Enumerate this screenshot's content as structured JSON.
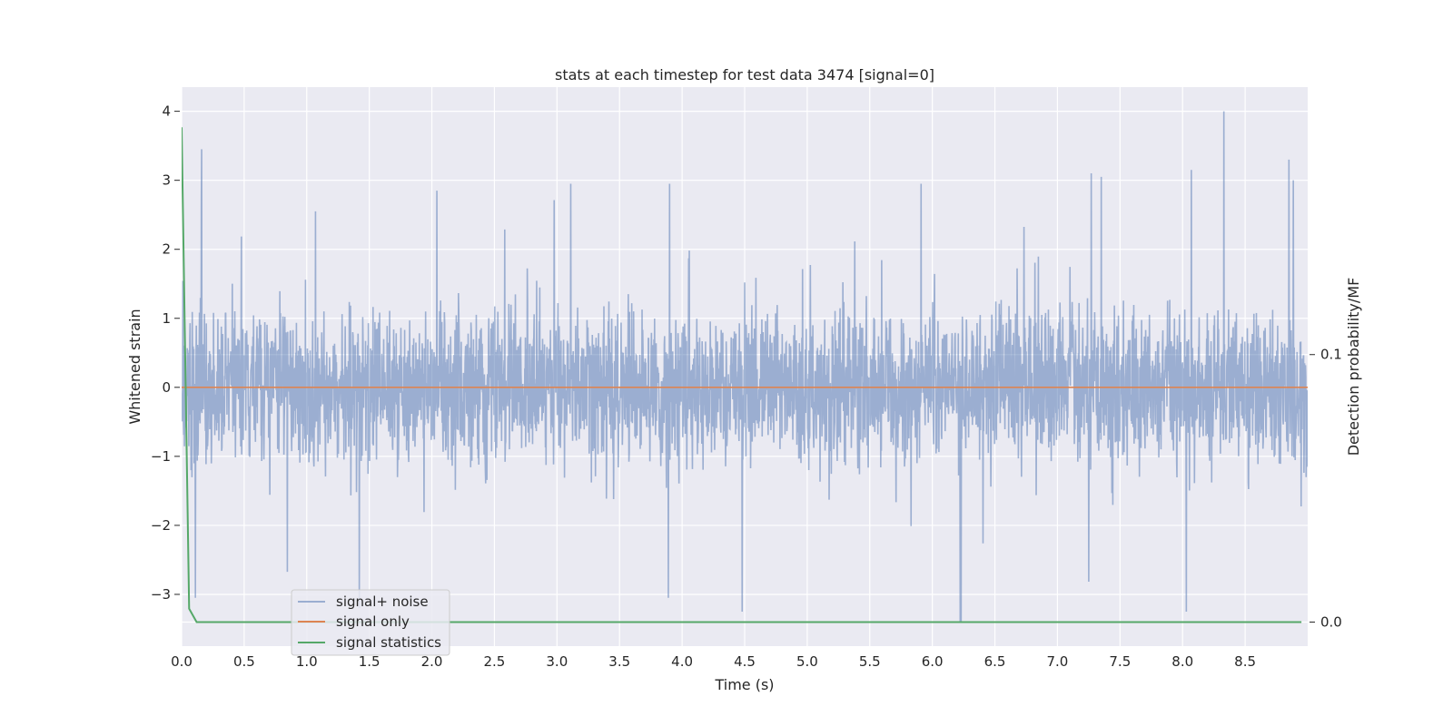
{
  "chart_data": {
    "type": "line",
    "title": "stats at each timestep for test data 3474 [signal=0]",
    "xlabel": "Time (s)",
    "ylabel": "Whitened strain",
    "y2label": "Detection probability/MF",
    "xlim": [
      0.0,
      9.0
    ],
    "ylim": [
      -3.75,
      4.35
    ],
    "y2lim": [
      -0.009,
      0.2
    ],
    "xticks": [
      "0.0",
      "0.5",
      "1.0",
      "1.5",
      "2.0",
      "2.5",
      "3.0",
      "3.5",
      "4.0",
      "4.5",
      "5.0",
      "5.5",
      "6.0",
      "6.5",
      "7.0",
      "7.5",
      "8.0",
      "8.5"
    ],
    "yticks": [
      "4",
      "3",
      "2",
      "1",
      "0",
      "−1",
      "−2",
      "−3"
    ],
    "y2ticks": [
      "0.1",
      "0.0"
    ],
    "grid": true,
    "legend_position": "lower-left",
    "series": [
      {
        "name": "signal+ noise",
        "color": "#4c72b0",
        "opacity": 0.5,
        "axis": "left",
        "envelope": {
          "min": -3.4,
          "max": 4.0,
          "sigma": 0.75
        },
        "peaks": [
          {
            "x": 0.16,
            "y": 3.45
          },
          {
            "x": 1.07,
            "y": 2.55
          },
          {
            "x": 2.04,
            "y": 2.85
          },
          {
            "x": 3.11,
            "y": 2.95
          },
          {
            "x": 3.9,
            "y": 2.95
          },
          {
            "x": 5.91,
            "y": 2.95
          },
          {
            "x": 7.27,
            "y": 3.1
          },
          {
            "x": 7.35,
            "y": 3.05
          },
          {
            "x": 8.07,
            "y": 3.15
          },
          {
            "x": 8.33,
            "y": 4.0
          },
          {
            "x": 8.85,
            "y": 3.3
          },
          {
            "x": 0.11,
            "y": -3.05
          },
          {
            "x": 1.42,
            "y": -3.2
          },
          {
            "x": 3.89,
            "y": -3.05
          },
          {
            "x": 4.48,
            "y": -3.25
          },
          {
            "x": 6.23,
            "y": -3.4
          },
          {
            "x": 8.03,
            "y": -3.25
          }
        ]
      },
      {
        "name": "signal only",
        "color": "#dd8452",
        "axis": "left",
        "x": [
          0.0,
          9.0
        ],
        "y": [
          0.0,
          0.0
        ]
      },
      {
        "name": "signal statistics",
        "color": "#55a868",
        "axis": "right",
        "x": [
          0.0,
          0.06,
          0.12,
          0.2,
          1.0,
          2.0,
          3.0,
          4.0,
          5.0,
          6.0,
          7.0,
          8.0,
          8.95
        ],
        "y": [
          0.185,
          0.005,
          0.0,
          0.0,
          0.0,
          0.0,
          0.0,
          0.0,
          0.0,
          0.0,
          0.0,
          0.0,
          0.0
        ]
      }
    ]
  }
}
